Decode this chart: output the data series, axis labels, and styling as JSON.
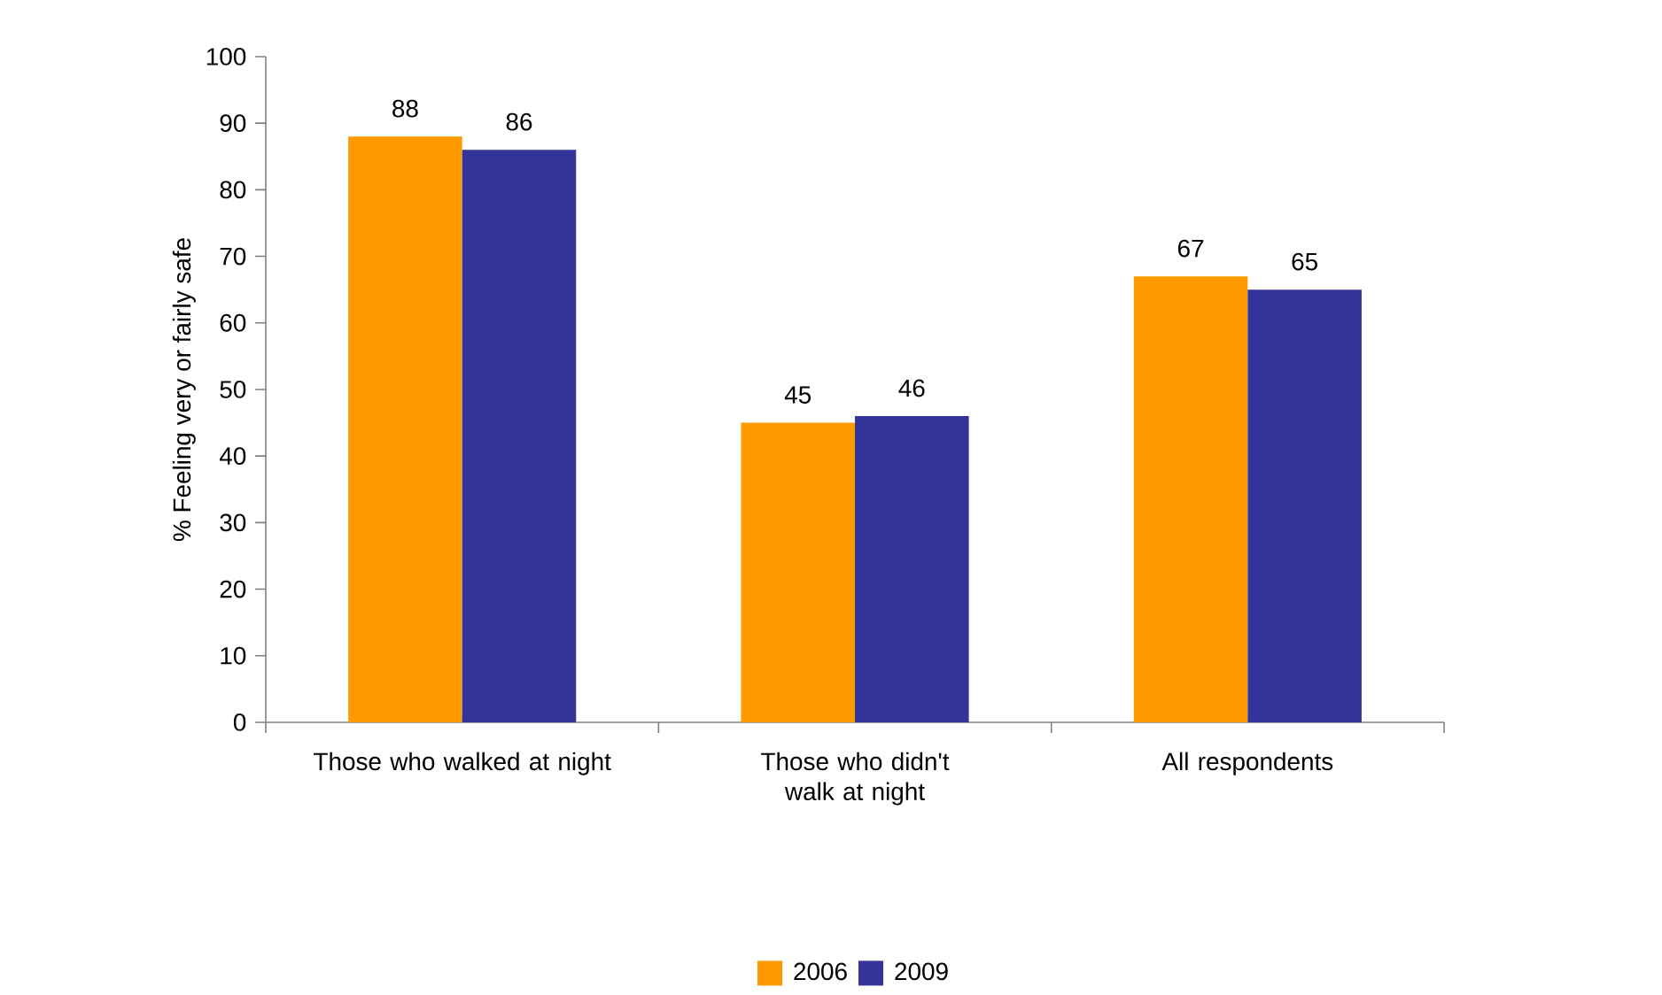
{
  "chart_data": {
    "type": "bar",
    "ylabel": "% Feeling very or fairly safe",
    "categories": [
      "Those who walked at night",
      "Those who didn't walk at night",
      "All respondents"
    ],
    "series": [
      {
        "name": "2006",
        "color": "#ff9900",
        "values": [
          88,
          45,
          67
        ]
      },
      {
        "name": "2009",
        "color": "#333399",
        "values": [
          86,
          46,
          65
        ]
      }
    ],
    "ylim": [
      0,
      100
    ],
    "yticks": [
      0,
      10,
      20,
      30,
      40,
      50,
      60,
      70,
      80,
      90,
      100
    ],
    "data_labels": true,
    "grid": false,
    "legend": "bottom"
  }
}
